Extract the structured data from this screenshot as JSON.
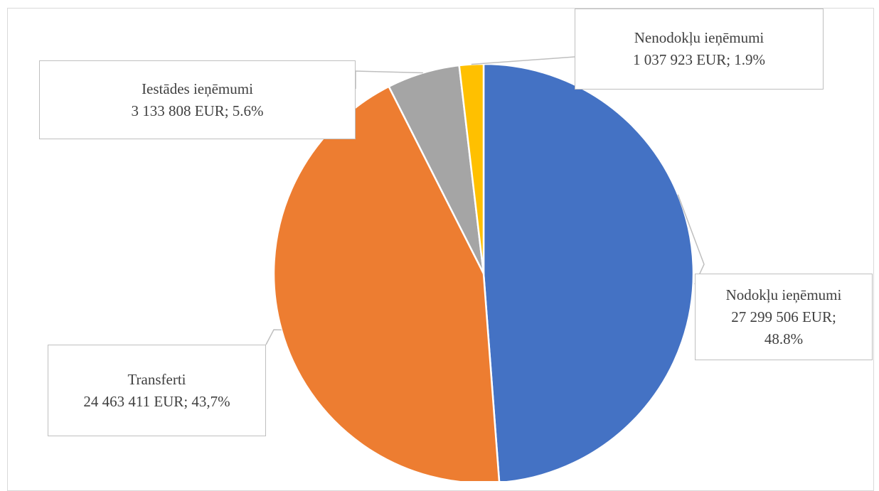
{
  "chart_data": {
    "type": "pie",
    "title": "",
    "slices": [
      {
        "name": "Nodokļu ieņēmumi",
        "value_label": "27 299 506 EUR;",
        "percent_label": "48.8%",
        "value": 27299506,
        "percent": 48.8,
        "color": "#4472c4"
      },
      {
        "name": "Transferti",
        "value_label": "24 463 411 EUR; 43,7%",
        "value": 24463411,
        "percent": 43.7,
        "color": "#ed7d31"
      },
      {
        "name": "Iestādes ieņēmumi",
        "value_label": "3 133 808 EUR; 5.6%",
        "value": 3133808,
        "percent": 5.6,
        "color": "#a5a5a5"
      },
      {
        "name": "Nenodokļu ieņēmumi",
        "value_label": "1 037 923 EUR; 1.9%",
        "value": 1037923,
        "percent": 1.9,
        "color": "#ffc000"
      }
    ],
    "legend": "none",
    "label_style": "callouts"
  }
}
